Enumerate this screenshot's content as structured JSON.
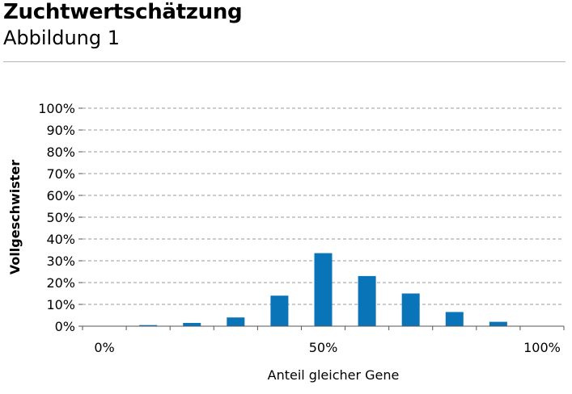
{
  "header": {
    "title": "Zuchtwertschätzung",
    "subtitle": "Abbildung 1"
  },
  "chart_data": {
    "type": "bar",
    "title": "Zuchtwertschätzung",
    "subtitle": "Abbildung 1",
    "xlabel": "Anteil gleicher Gene",
    "ylabel": "Vollgeschwister",
    "x": [
      10,
      20,
      30,
      40,
      50,
      60,
      70,
      80,
      90
    ],
    "values": [
      0.5,
      1.5,
      4,
      14,
      33.5,
      23,
      15,
      6.5,
      2
    ],
    "xlim": [
      -5,
      105
    ],
    "ylim": [
      0,
      100
    ],
    "y_ticks": [
      "0%",
      "10%",
      "20%",
      "30%",
      "40%",
      "50%",
      "60%",
      "70%",
      "80%",
      "90%",
      "100%"
    ],
    "x_tick_labels": [
      {
        "value": 0,
        "label": "0%"
      },
      {
        "value": 50,
        "label": "50%"
      },
      {
        "value": 100,
        "label": "100%"
      }
    ],
    "grid": true,
    "bar_color": "#0a74b9",
    "grid_color": "#9a9a9a"
  }
}
